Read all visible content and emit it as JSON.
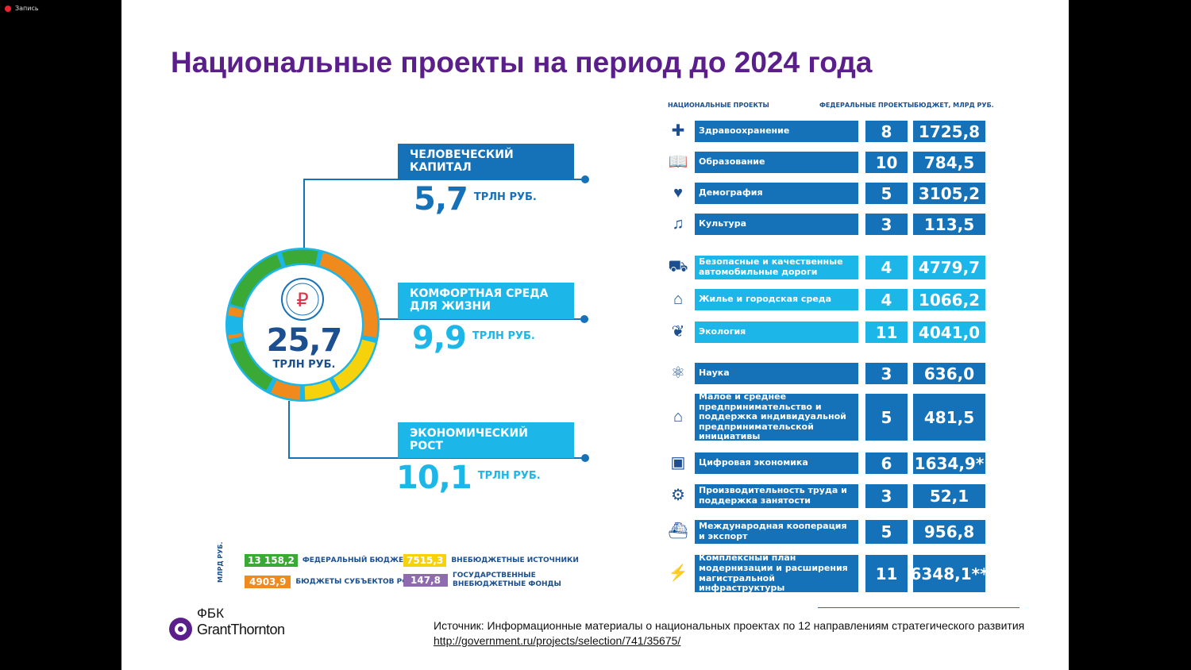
{
  "recording": {
    "label": "Запись"
  },
  "slide": {
    "title": "Национальные проекты на период до 2024 года",
    "table_headers": {
      "projects": "НАЦИОНАЛЬНЫЕ ПРОЕКТЫ",
      "federal": "ФЕДЕРАЛЬНЫЕ ПРОЕКТЫ",
      "budget": "БЮДЖЕТ, МЛРД РУБ."
    },
    "total": {
      "value": "25,7",
      "unit": "ТРЛН РУБ."
    },
    "categories": [
      {
        "label": "ЧЕЛОВЕЧЕСКИЙ КАПИТАЛ",
        "value": "5,7",
        "unit": "ТРЛН РУБ."
      },
      {
        "label": "КОМФОРТНАЯ СРЕДА ДЛЯ ЖИЗНИ",
        "value": "9,9",
        "unit": "ТРЛН РУБ."
      },
      {
        "label": "ЭКОНОМИЧЕСКИЙ РОСТ",
        "value": "10,1",
        "unit": "ТРЛН РУБ."
      }
    ],
    "projects": [
      {
        "name": "Здравоохранение",
        "count": "8",
        "budget": "1725,8",
        "icon": "medical-cross-icon",
        "glyph": "✚"
      },
      {
        "name": "Образование",
        "count": "10",
        "budget": "784,5",
        "icon": "book-icon",
        "glyph": "📖"
      },
      {
        "name": "Демография",
        "count": "5",
        "budget": "3105,2",
        "icon": "family-icon",
        "glyph": "♥"
      },
      {
        "name": "Культура",
        "count": "3",
        "budget": "113,5",
        "icon": "lyre-icon",
        "glyph": "♫"
      },
      {
        "name": "Безопасные и качественные автомобильные дороги",
        "count": "4",
        "budget": "4779,7",
        "icon": "road-icon",
        "glyph": "⛟"
      },
      {
        "name": "Жилье и городская среда",
        "count": "4",
        "budget": "1066,2",
        "icon": "building-icon",
        "glyph": "⌂"
      },
      {
        "name": "Экология",
        "count": "11",
        "budget": "4041,0",
        "icon": "sprout-icon",
        "glyph": "❦"
      },
      {
        "name": "Наука",
        "count": "3",
        "budget": "636,0",
        "icon": "atom-icon",
        "glyph": "⚛"
      },
      {
        "name": "Малое и среднее предпринимательство и поддержка индивидуальной предпринимательской инициативы",
        "count": "5",
        "budget": "481,5",
        "icon": "shop-icon",
        "glyph": "⌂"
      },
      {
        "name": "Цифровая экономика",
        "count": "6",
        "budget": "1634,9*",
        "icon": "chart-icon",
        "glyph": "▣"
      },
      {
        "name": "Производительность труда и поддержка занятости",
        "count": "3",
        "budget": "52,1",
        "icon": "factory-icon",
        "glyph": "⚙"
      },
      {
        "name": "Международная кооперация и экспорт",
        "count": "5",
        "budget": "956,8",
        "icon": "cart-icon",
        "glyph": "⛴"
      },
      {
        "name": "Комплексный план модернизации и расширения магистральной инфраструктуры",
        "count": "11",
        "budget": "6348,1**",
        "icon": "infrastructure-icon",
        "glyph": "⚡"
      }
    ],
    "legend": {
      "unit_label": "МЛРД РУБ.",
      "items": [
        {
          "value": "13 158,2",
          "label": "ФЕДЕРАЛЬНЫЙ БЮДЖЕТ",
          "color": "#3aa935"
        },
        {
          "value": "7515,3",
          "label": "ВНЕБЮДЖЕТНЫЕ ИСТОЧНИКИ",
          "color": "#f5d20c"
        },
        {
          "value": "4903,9",
          "label": "БЮДЖЕТЫ СУБЪЕКТОВ РФ",
          "color": "#f08a1c"
        },
        {
          "value": "147,8",
          "label": "ГОСУДАРСТВЕННЫЕ ВНЕБЮДЖЕТНЫЕ ФОНДЫ",
          "color": "#8e6bb0"
        }
      ]
    },
    "logo": {
      "line1": "ФБК",
      "line2": "GrantThornton"
    },
    "source": {
      "text": "Источник: Информационные материалы о национальных проектах по 12 направлениям стратегического развития ",
      "link": "http://government.ru/projects/selection/741/35675/"
    }
  },
  "colors": {
    "dark_blue": "#1572b8",
    "light_blue": "#1cb7e8",
    "title_purple": "#5b1f8c",
    "navy": "#1b4f8f"
  }
}
